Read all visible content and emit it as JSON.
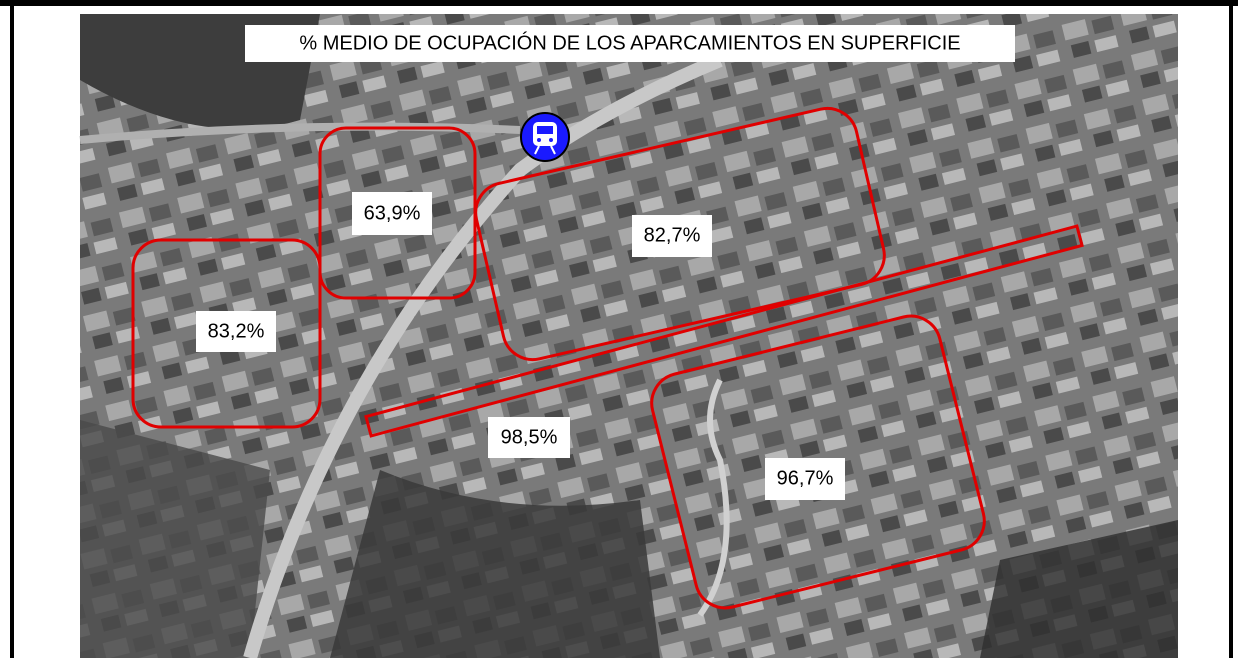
{
  "title": "% MEDIO DE OCUPACIÓN DE LOS APARCAMIENTOS EN SUPERFICIE",
  "zones": [
    {
      "label": "63,9%"
    },
    {
      "label": "83,2%"
    },
    {
      "label": "82,7%"
    },
    {
      "label": "98,5%"
    },
    {
      "label": "96,7%"
    }
  ]
}
